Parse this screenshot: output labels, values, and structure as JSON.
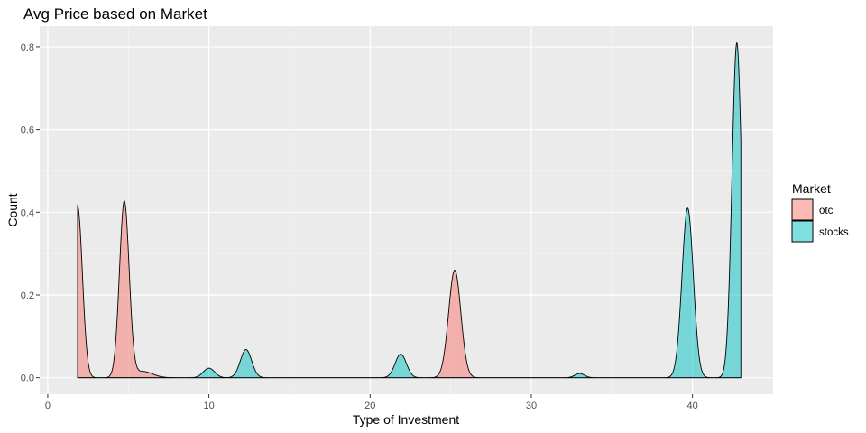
{
  "chart_data": {
    "type": "area",
    "title": "Avg Price based on Market",
    "xlabel": "Type of Investment",
    "ylabel": "Count",
    "xlim": [
      -0.5,
      45
    ],
    "ylim": [
      -0.04,
      0.85
    ],
    "xticks": [
      0,
      10,
      20,
      30,
      40
    ],
    "yticks": [
      0.0,
      0.2,
      0.4,
      0.6,
      0.8
    ],
    "xtick_labels": [
      "0",
      "10",
      "20",
      "30",
      "40"
    ],
    "ytick_labels": [
      "0.0",
      "0.2",
      "0.4",
      "0.6",
      "0.8"
    ],
    "grid": true,
    "legend": {
      "title": "Market",
      "position": "right"
    },
    "series": [
      {
        "name": "otc",
        "color": "#F8766D",
        "x_range": [
          1.85,
          43
        ],
        "peaks": [
          {
            "x": 1.85,
            "height": 0.415,
            "width": 0.3
          },
          {
            "x": 4.75,
            "height": 0.425,
            "width": 0.3
          },
          {
            "x": 5.9,
            "height": 0.015,
            "width": 0.6
          },
          {
            "x": 25.25,
            "height": 0.26,
            "width": 0.38
          }
        ]
      },
      {
        "name": "stocks",
        "color": "#00BFC4",
        "x_range": [
          1.85,
          43
        ],
        "peaks": [
          {
            "x": 10.0,
            "height": 0.023,
            "width": 0.35
          },
          {
            "x": 12.3,
            "height": 0.068,
            "width": 0.35
          },
          {
            "x": 21.9,
            "height": 0.057,
            "width": 0.35
          },
          {
            "x": 33.0,
            "height": 0.01,
            "width": 0.3
          },
          {
            "x": 39.7,
            "height": 0.41,
            "width": 0.35
          },
          {
            "x": 42.75,
            "height": 0.81,
            "width": 0.3
          }
        ]
      }
    ]
  }
}
